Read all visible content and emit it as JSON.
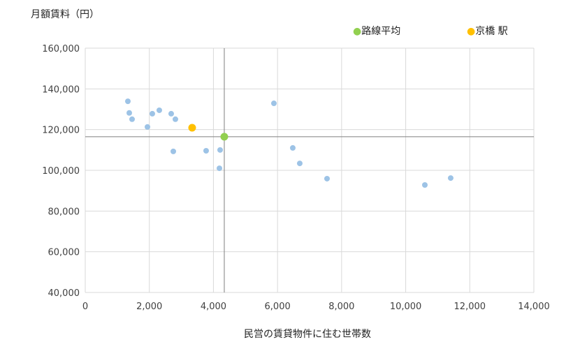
{
  "chart_data": {
    "type": "scatter",
    "ylabel": "月額賃料（円）",
    "xlabel": "民営の賃貸物件に住む世帯数",
    "xlim": [
      0,
      14000
    ],
    "ylim": [
      40000,
      160000
    ],
    "xticks": [
      0,
      2000,
      4000,
      6000,
      8000,
      10000,
      12000,
      14000
    ],
    "yticks": [
      40000,
      60000,
      80000,
      100000,
      120000,
      140000,
      160000
    ],
    "xtick_labels": [
      "0",
      "2,000",
      "4,000",
      "6,000",
      "8,000",
      "10,000",
      "12,000",
      "14,000"
    ],
    "ytick_labels": [
      "40,000",
      "60,000",
      "80,000",
      "100,000",
      "120,000",
      "140,000",
      "160,000"
    ],
    "grid": true,
    "legend_position": "top-right",
    "series": [
      {
        "color": "#9dc3e6",
        "points": [
          [
            1330,
            133900
          ],
          [
            1374,
            128200
          ],
          [
            1461,
            125100
          ],
          [
            1941,
            121300
          ],
          [
            2093,
            127800
          ],
          [
            2311,
            129500
          ],
          [
            2682,
            127800
          ],
          [
            2813,
            125100
          ],
          [
            2748,
            109300
          ],
          [
            3772,
            109600
          ],
          [
            4209,
            110000
          ],
          [
            4187,
            101000
          ],
          [
            5887,
            132900
          ],
          [
            6476,
            111000
          ],
          [
            6694,
            103400
          ],
          [
            7545,
            95900
          ],
          [
            10598,
            92800
          ],
          [
            11404,
            96200
          ]
        ]
      },
      {
        "name": "路線平均",
        "color": "#92d050",
        "points": [
          [
            4339,
            116500
          ]
        ],
        "crosshair": true
      },
      {
        "name": "京橋 駅",
        "color": "#ffc000",
        "points": [
          [
            3336,
            120900
          ]
        ]
      }
    ]
  }
}
